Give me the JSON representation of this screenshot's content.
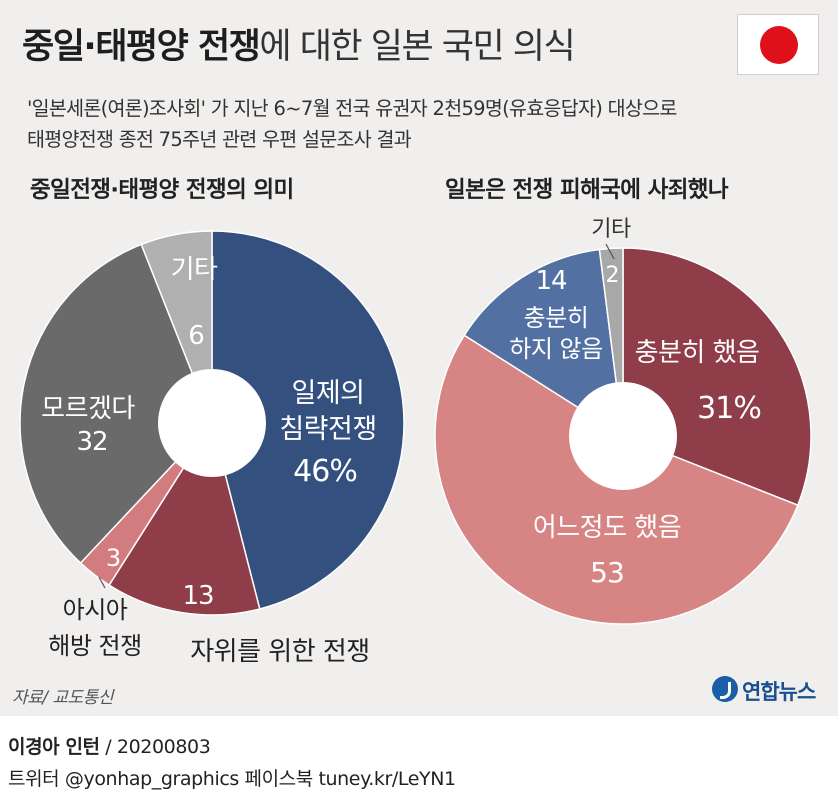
{
  "title": {
    "bold": "중일·태평양 전쟁",
    "rest": "에 대한 일본 국민 의식"
  },
  "subtitle": [
    "'일본세론(여론)조사회' 가 지난 6~7월 전국 유권자 2천59명(유효응답자) 대상으로",
    "태평양전쟁 종전 75주년 관련 우편 설문조사 결과"
  ],
  "colors": {
    "flag_red": "#e0101b",
    "left": {
      "invasion": "#34507f",
      "self_defense": "#8e3d49",
      "liberation": "#d27c80",
      "dont_know": "#6b6a6b",
      "other": "#b1b0b0"
    },
    "right": {
      "enough": "#8e3d49",
      "somewhat": "#d78485",
      "not_enough": "#5370a3",
      "other": "#a9a8a8"
    }
  },
  "chart_data": [
    {
      "type": "pie",
      "style": "donut",
      "title": "중일전쟁·태평양 전쟁의 의미",
      "slices": [
        {
          "key": "invasion",
          "label": "일제의 침략전쟁",
          "label_lines": [
            "일제의",
            "침략전쟁"
          ],
          "value": 46,
          "value_text": "46%"
        },
        {
          "key": "self_defense",
          "label": "자위를 위한 전쟁",
          "label_lines": [
            "자위를 위한 전쟁"
          ],
          "value": 13,
          "value_text": "13"
        },
        {
          "key": "liberation",
          "label": "아시아 해방 전쟁",
          "label_lines": [
            "아시아",
            "해방 전쟁"
          ],
          "value": 3,
          "value_text": "3"
        },
        {
          "key": "dont_know",
          "label": "모르겠다",
          "label_lines": [
            "모르겠다"
          ],
          "value": 32,
          "value_text": "32"
        },
        {
          "key": "other",
          "label": "기타",
          "label_lines": [
            "기타"
          ],
          "value": 6,
          "value_text": "6"
        }
      ]
    },
    {
      "type": "pie",
      "style": "donut",
      "title": "일본은 전쟁 피해국에 사죄했나",
      "slices": [
        {
          "key": "enough",
          "label": "충분히 했음",
          "label_lines": [
            "충분히 했음"
          ],
          "value": 31,
          "value_text": "31%"
        },
        {
          "key": "somewhat",
          "label": "어느정도 했음",
          "label_lines": [
            "어느정도 했음"
          ],
          "value": 53,
          "value_text": "53"
        },
        {
          "key": "not_enough",
          "label": "충분히 하지 않음",
          "label_lines": [
            "충분히",
            "하지 않음"
          ],
          "value": 14,
          "value_text": "14"
        },
        {
          "key": "other",
          "label": "기타",
          "label_lines": [
            "기타"
          ],
          "value": 2,
          "value_text": "2"
        }
      ]
    }
  ],
  "source": "자료/ 교도통신",
  "logo_text": "연합뉴스",
  "credit": {
    "author": "이경아 인턴",
    "date": " / 20200803",
    "social": "트위터 @yonhap_graphics  페이스북 tuney.kr/LeYN1"
  }
}
